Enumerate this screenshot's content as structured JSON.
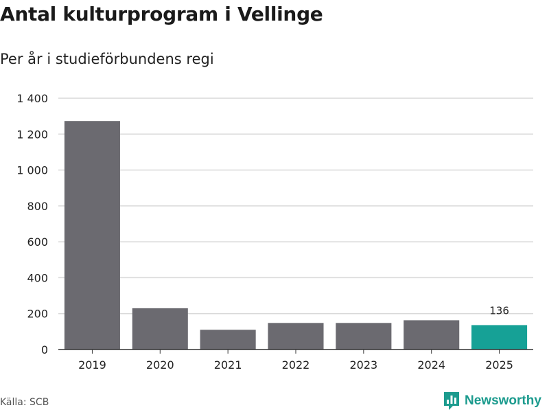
{
  "header": {
    "title": "Antal kulturprogram i Vellinge",
    "subtitle": "Per år i studieförbundens regi"
  },
  "footer": {
    "source": "Källa: SCB",
    "brand": "Newsworthy"
  },
  "colors": {
    "bar": "#6b6a70",
    "highlight": "#16a196",
    "grid": "#d9d9d9",
    "axis": "#333333",
    "brand": "#1c9b8e"
  },
  "chart_data": {
    "type": "bar",
    "title": "Antal kulturprogram i Vellinge",
    "subtitle": "Per år i studieförbundens regi",
    "categories": [
      "2019",
      "2020",
      "2021",
      "2022",
      "2023",
      "2024",
      "2025"
    ],
    "values": [
      1273,
      230,
      110,
      148,
      148,
      163,
      136
    ],
    "highlight_index": 6,
    "data_labels": [
      {
        "index": 6,
        "text": "136"
      }
    ],
    "yticks": [
      0,
      200,
      400,
      600,
      800,
      1000,
      1200,
      1400
    ],
    "ytick_labels": [
      "0",
      "200",
      "400",
      "600",
      "800",
      "1 000",
      "1 200",
      "1 400"
    ],
    "ylim": [
      0,
      1400
    ],
    "xlabel": "",
    "ylabel": "",
    "grid": true
  }
}
